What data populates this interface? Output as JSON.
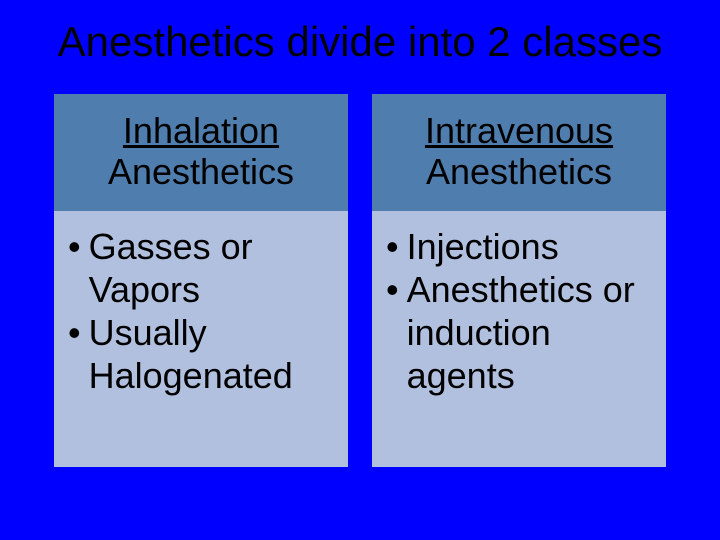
{
  "slide": {
    "background_color": "#0000ff",
    "title": "Anesthetics divide into 2 classes",
    "title_color": "#000000",
    "title_fontsize": 42,
    "columns": [
      {
        "header_underlined": "Inhalation",
        "header_rest": "Anesthetics",
        "header_bg": "#4f7eae",
        "body_bg": "#b1c0de",
        "bullets": [
          "Gasses or Vapors",
          "Usually Halogenated"
        ]
      },
      {
        "header_underlined": "Intravenous",
        "header_rest": "Anesthetics",
        "header_bg": "#4f7eae",
        "body_bg": "#b1c0de",
        "bullets": [
          "Injections",
          "Anesthetics or induction agents"
        ]
      }
    ],
    "body_fontsize": 36,
    "header_fontsize": 36
  }
}
